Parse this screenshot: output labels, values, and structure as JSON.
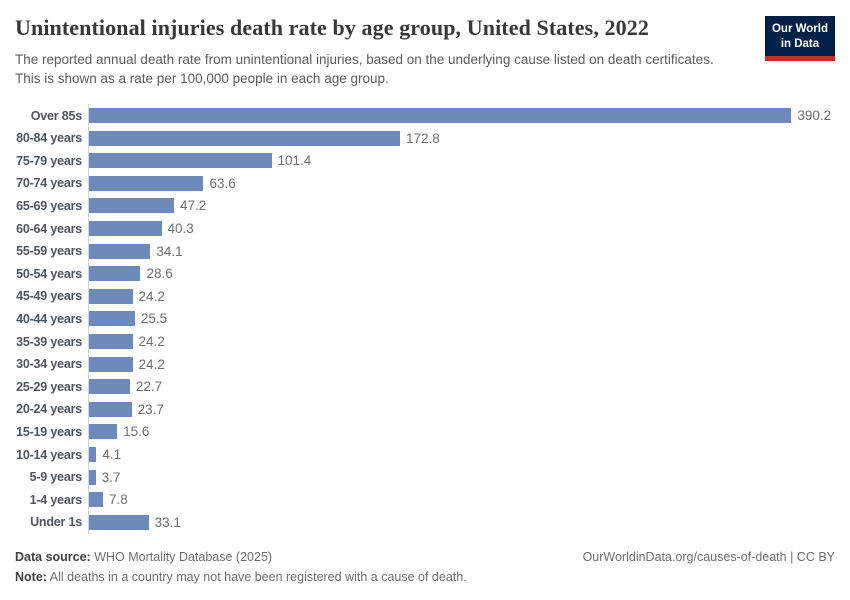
{
  "header": {
    "title": "Unintentional injuries death rate by age group, United States, 2022",
    "subtitle": "The reported annual death rate from unintentional injuries, based on the underlying cause listed on death certificates. This is shown as a rate per 100,000 people in each age group.",
    "logo": {
      "line1": "Our World",
      "line2": "in Data"
    }
  },
  "chart_data": {
    "type": "bar",
    "orientation": "horizontal",
    "title": "Unintentional injuries death rate by age group, United States, 2022",
    "xlabel": "",
    "ylabel": "",
    "xlim": [
      0,
      400
    ],
    "grid": false,
    "legend": false,
    "value_labels": true,
    "categories": [
      "Over 85s",
      "80-84 years",
      "75-79 years",
      "70-74 years",
      "65-69 years",
      "60-64 years",
      "55-59 years",
      "50-54 years",
      "45-49 years",
      "40-44 years",
      "35-39 years",
      "30-34 years",
      "25-29 years",
      "20-24 years",
      "15-19 years",
      "10-14 years",
      "5-9 years",
      "1-4 years",
      "Under 1s"
    ],
    "values": [
      390.2,
      172.8,
      101.4,
      63.6,
      47.2,
      40.3,
      34.1,
      28.6,
      24.2,
      25.5,
      24.2,
      24.2,
      22.7,
      23.7,
      15.6,
      4.1,
      3.7,
      7.8,
      33.1
    ]
  },
  "colors": {
    "bar": "#6c8aba",
    "axis_line": "#d5d5d5",
    "logo_background": "#002147",
    "logo_accent": "#cc2b23",
    "category_label": "#4d565f",
    "value_label": "#6f6f6f"
  },
  "footer": {
    "data_source_label": "Data source:",
    "data_source_value": "WHO Mortality Database (2025)",
    "note_label": "Note:",
    "note_value": "All deaths in a country may not have been registered with a cause of death.",
    "attribution": "OurWorldinData.org/causes-of-death | CC BY"
  }
}
